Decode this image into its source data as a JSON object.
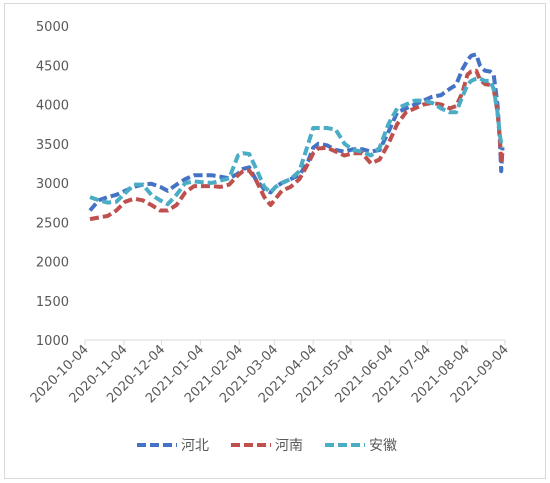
{
  "chart_data": {
    "type": "line",
    "title": "",
    "xlabel": "",
    "ylabel": "",
    "ylim": [
      1000,
      5000
    ],
    "yticks": [
      1000,
      1500,
      2000,
      2500,
      3000,
      3500,
      4000,
      4500,
      5000
    ],
    "xticks": [
      "2020-10-04",
      "2020-11-04",
      "2020-12-04",
      "2021-01-04",
      "2021-02-04",
      "2021-03-04",
      "2021-04-04",
      "2021-05-04",
      "2021-06-04",
      "2021-07-04",
      "2021-08-04",
      "2021-09-04"
    ],
    "xlim": [
      "2020-10-04",
      "2021-09-04"
    ],
    "grid": false,
    "legend": "bottom",
    "series": [
      {
        "name": "河北",
        "color": "#4472c4",
        "dash": "dashed",
        "points": [
          [
            "2020-10-08",
            2650
          ],
          [
            "2020-10-15",
            2780
          ],
          [
            "2020-10-22",
            2820
          ],
          [
            "2020-10-29",
            2850
          ],
          [
            "2020-11-05",
            2900
          ],
          [
            "2020-11-12",
            2950
          ],
          [
            "2020-11-19",
            2980
          ],
          [
            "2020-11-26",
            2990
          ],
          [
            "2020-12-03",
            2950
          ],
          [
            "2020-12-09",
            2900
          ],
          [
            "2020-12-16",
            2980
          ],
          [
            "2020-12-23",
            3050
          ],
          [
            "2020-12-30",
            3100
          ],
          [
            "2021-01-06",
            3100
          ],
          [
            "2021-01-13",
            3100
          ],
          [
            "2021-01-20",
            3080
          ],
          [
            "2021-01-27",
            3060
          ],
          [
            "2021-02-03",
            3120
          ],
          [
            "2021-02-07",
            3180
          ],
          [
            "2021-02-12",
            3200
          ],
          [
            "2021-02-17",
            3050
          ],
          [
            "2021-02-24",
            2920
          ],
          [
            "2021-03-01",
            2880
          ],
          [
            "2021-03-05",
            2950
          ],
          [
            "2021-03-10",
            3000
          ],
          [
            "2021-03-17",
            3050
          ],
          [
            "2021-03-24",
            3100
          ],
          [
            "2021-03-31",
            3280
          ],
          [
            "2021-04-04",
            3450
          ],
          [
            "2021-04-08",
            3500
          ],
          [
            "2021-04-15",
            3480
          ],
          [
            "2021-04-22",
            3420
          ],
          [
            "2021-04-29",
            3400
          ],
          [
            "2021-05-06",
            3430
          ],
          [
            "2021-05-13",
            3430
          ],
          [
            "2021-05-20",
            3400
          ],
          [
            "2021-05-27",
            3420
          ],
          [
            "2021-06-03",
            3650
          ],
          [
            "2021-06-10",
            3900
          ],
          [
            "2021-06-17",
            3950
          ],
          [
            "2021-06-24",
            4000
          ],
          [
            "2021-07-01",
            4050
          ],
          [
            "2021-07-08",
            4100
          ],
          [
            "2021-07-15",
            4120
          ],
          [
            "2021-07-22",
            4200
          ],
          [
            "2021-07-27",
            4250
          ],
          [
            "2021-08-01",
            4450
          ],
          [
            "2021-08-05",
            4560
          ],
          [
            "2021-08-08",
            4620
          ],
          [
            "2021-08-12",
            4640
          ],
          [
            "2021-08-15",
            4500
          ],
          [
            "2021-08-19",
            4430
          ],
          [
            "2021-08-23",
            4420
          ],
          [
            "2021-08-26",
            4380
          ],
          [
            "2021-08-29",
            4000
          ],
          [
            "2021-08-31",
            3500
          ],
          [
            "2021-09-01",
            3150
          ],
          [
            "2021-09-02",
            3450
          ]
        ]
      },
      {
        "name": "河南",
        "color": "#c0504d",
        "dash": "dashed",
        "points": [
          [
            "2020-10-08",
            2540
          ],
          [
            "2020-10-15",
            2560
          ],
          [
            "2020-10-22",
            2580
          ],
          [
            "2020-10-29",
            2650
          ],
          [
            "2020-11-05",
            2760
          ],
          [
            "2020-11-12",
            2800
          ],
          [
            "2020-11-19",
            2780
          ],
          [
            "2020-11-26",
            2720
          ],
          [
            "2020-12-03",
            2650
          ],
          [
            "2020-12-09",
            2650
          ],
          [
            "2020-12-16",
            2720
          ],
          [
            "2020-12-23",
            2880
          ],
          [
            "2020-12-30",
            2960
          ],
          [
            "2021-01-06",
            2960
          ],
          [
            "2021-01-13",
            2960
          ],
          [
            "2021-01-20",
            2950
          ],
          [
            "2021-01-27",
            2980
          ],
          [
            "2021-02-03",
            3100
          ],
          [
            "2021-02-07",
            3150
          ],
          [
            "2021-02-12",
            3160
          ],
          [
            "2021-02-17",
            3050
          ],
          [
            "2021-02-24",
            2820
          ],
          [
            "2021-03-01",
            2720
          ],
          [
            "2021-03-05",
            2800
          ],
          [
            "2021-03-10",
            2900
          ],
          [
            "2021-03-17",
            2950
          ],
          [
            "2021-03-24",
            3050
          ],
          [
            "2021-03-31",
            3250
          ],
          [
            "2021-04-04",
            3380
          ],
          [
            "2021-04-08",
            3440
          ],
          [
            "2021-04-15",
            3450
          ],
          [
            "2021-04-22",
            3400
          ],
          [
            "2021-04-29",
            3350
          ],
          [
            "2021-05-06",
            3380
          ],
          [
            "2021-05-13",
            3380
          ],
          [
            "2021-05-20",
            3250
          ],
          [
            "2021-05-27",
            3300
          ],
          [
            "2021-06-03",
            3500
          ],
          [
            "2021-06-10",
            3750
          ],
          [
            "2021-06-17",
            3900
          ],
          [
            "2021-06-24",
            3950
          ],
          [
            "2021-07-01",
            4000
          ],
          [
            "2021-07-08",
            4020
          ],
          [
            "2021-07-15",
            4000
          ],
          [
            "2021-07-22",
            3950
          ],
          [
            "2021-07-27",
            3980
          ],
          [
            "2021-08-01",
            4150
          ],
          [
            "2021-08-05",
            4380
          ],
          [
            "2021-08-08",
            4420
          ],
          [
            "2021-08-12",
            4430
          ],
          [
            "2021-08-15",
            4320
          ],
          [
            "2021-08-19",
            4260
          ],
          [
            "2021-08-23",
            4250
          ],
          [
            "2021-08-26",
            4200
          ],
          [
            "2021-08-29",
            3900
          ],
          [
            "2021-08-31",
            3550
          ],
          [
            "2021-09-01",
            3250
          ],
          [
            "2021-09-02",
            3400
          ]
        ]
      },
      {
        "name": "安徽",
        "color": "#4bacc6",
        "dash": "dashed",
        "points": [
          [
            "2020-10-08",
            2820
          ],
          [
            "2020-10-15",
            2780
          ],
          [
            "2020-10-22",
            2750
          ],
          [
            "2020-10-29",
            2760
          ],
          [
            "2020-11-05",
            2870
          ],
          [
            "2020-11-12",
            2980
          ],
          [
            "2020-11-19",
            2980
          ],
          [
            "2020-11-26",
            2850
          ],
          [
            "2020-12-03",
            2780
          ],
          [
            "2020-12-09",
            2730
          ],
          [
            "2020-12-16",
            2850
          ],
          [
            "2020-12-23",
            3000
          ],
          [
            "2020-12-30",
            3020
          ],
          [
            "2021-01-06",
            3010
          ],
          [
            "2021-01-13",
            3000
          ],
          [
            "2021-01-20",
            3030
          ],
          [
            "2021-01-27",
            3060
          ],
          [
            "2021-02-03",
            3350
          ],
          [
            "2021-02-07",
            3380
          ],
          [
            "2021-02-12",
            3370
          ],
          [
            "2021-02-17",
            3200
          ],
          [
            "2021-02-24",
            2950
          ],
          [
            "2021-03-01",
            2880
          ],
          [
            "2021-03-05",
            2950
          ],
          [
            "2021-03-10",
            3000
          ],
          [
            "2021-03-17",
            3050
          ],
          [
            "2021-03-24",
            3150
          ],
          [
            "2021-03-31",
            3500
          ],
          [
            "2021-04-04",
            3700
          ],
          [
            "2021-04-08",
            3700
          ],
          [
            "2021-04-15",
            3700
          ],
          [
            "2021-04-22",
            3680
          ],
          [
            "2021-04-29",
            3500
          ],
          [
            "2021-05-06",
            3420
          ],
          [
            "2021-05-13",
            3400
          ],
          [
            "2021-05-20",
            3350
          ],
          [
            "2021-05-27",
            3450
          ],
          [
            "2021-06-03",
            3750
          ],
          [
            "2021-06-10",
            3950
          ],
          [
            "2021-06-17",
            4000
          ],
          [
            "2021-06-24",
            4050
          ],
          [
            "2021-07-01",
            4050
          ],
          [
            "2021-07-08",
            4020
          ],
          [
            "2021-07-15",
            3950
          ],
          [
            "2021-07-22",
            3900
          ],
          [
            "2021-07-27",
            3900
          ],
          [
            "2021-08-01",
            4100
          ],
          [
            "2021-08-05",
            4250
          ],
          [
            "2021-08-08",
            4300
          ],
          [
            "2021-08-12",
            4330
          ],
          [
            "2021-08-15",
            4330
          ],
          [
            "2021-08-19",
            4300
          ],
          [
            "2021-08-23",
            4300
          ],
          [
            "2021-08-26",
            4200
          ],
          [
            "2021-08-29",
            3900
          ],
          [
            "2021-08-31",
            3600
          ],
          [
            "2021-09-01",
            3500
          ],
          [
            "2021-09-02",
            3450
          ]
        ]
      }
    ]
  }
}
